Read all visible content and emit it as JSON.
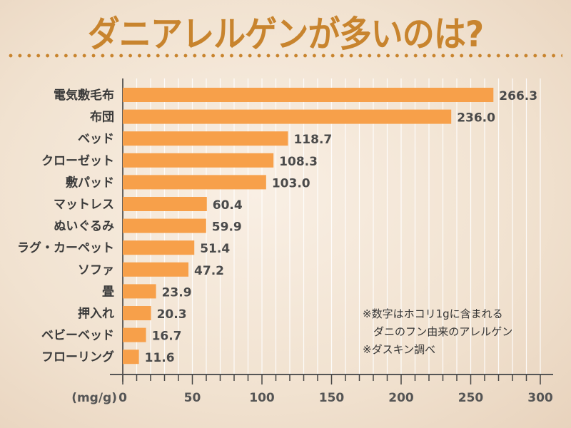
{
  "chart_data": {
    "type": "bar",
    "orientation": "horizontal",
    "title": "ダニアレルゲンが多いのは?",
    "categories": [
      "電気敷毛布",
      "布団",
      "ベッド",
      "クローゼット",
      "敷パッド",
      "マットレス",
      "ぬいぐるみ",
      "ラグ・カーペット",
      "ソファ",
      "畳",
      "押入れ",
      "ベビーベッド",
      "フローリング"
    ],
    "values": [
      266.3,
      236.0,
      118.7,
      108.3,
      103.0,
      60.4,
      59.9,
      51.4,
      47.2,
      23.9,
      20.3,
      16.7,
      11.6
    ],
    "value_labels": [
      "266.3",
      "236.0",
      "118.7",
      "108.3",
      "103.0",
      "60.4",
      "59.9",
      "51.4",
      "47.2",
      "23.9",
      "20.3",
      "16.7",
      "11.6"
    ],
    "xlabel": "(mg/g)",
    "xlim": [
      0,
      300
    ],
    "xticks": [
      "0",
      "50",
      "100",
      "150",
      "200",
      "250",
      "300"
    ],
    "grid": true,
    "bar_color": "#f7a04a",
    "title_color": "#c8842e",
    "notes": [
      "※数字はホコリ1gに含まれる",
      "　ダニのフン由来のアレルゲン",
      "※ダスキン調べ"
    ]
  }
}
